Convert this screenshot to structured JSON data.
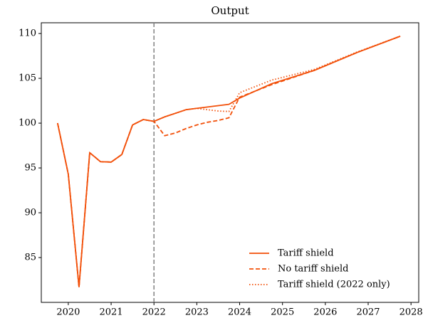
{
  "chart_data": {
    "type": "line",
    "title": "Output",
    "x": [
      2019.75,
      2020.0,
      2020.25,
      2020.5,
      2020.75,
      2021.0,
      2021.25,
      2021.5,
      2021.75,
      2022.0,
      2022.25,
      2022.5,
      2022.75,
      2023.0,
      2023.25,
      2023.5,
      2023.75,
      2024.0,
      2024.75,
      2025.75,
      2026.75,
      2027.75
    ],
    "series": [
      {
        "name": "Tariff shield",
        "color": "#f2500a",
        "dash": "solid",
        "values": [
          100,
          94.3,
          81.7,
          96.7,
          95.7,
          95.65,
          96.5,
          99.8,
          100.4,
          100.2,
          100.7,
          101.1,
          101.5,
          101.65,
          101.8,
          101.95,
          102.1,
          102.8,
          104.4,
          105.9,
          107.9,
          109.7
        ]
      },
      {
        "name": "No tariff shield",
        "color": "#f2500a",
        "dash": "dashed",
        "values": [
          100,
          94.3,
          81.7,
          96.7,
          95.7,
          95.65,
          96.5,
          99.8,
          100.4,
          100.2,
          98.6,
          98.9,
          99.4,
          99.8,
          100.1,
          100.3,
          100.6,
          102.9,
          104.3,
          105.9,
          107.9,
          109.7
        ]
      },
      {
        "name": "Tariff shield (2022 only)",
        "color": "#f2500a",
        "dash": "dotted",
        "values": [
          100,
          94.3,
          81.7,
          96.7,
          95.7,
          95.65,
          96.5,
          99.8,
          100.4,
          100.2,
          100.7,
          101.1,
          101.5,
          101.65,
          101.5,
          101.35,
          101.3,
          103.4,
          104.8,
          106.0,
          107.95,
          109.7
        ]
      }
    ],
    "xlim": [
      2019.37,
      2028.18
    ],
    "ylim": [
      80,
      111.2
    ],
    "xticks": [
      2020,
      2021,
      2022,
      2023,
      2024,
      2025,
      2026,
      2027,
      2028
    ],
    "yticks": [
      85,
      90,
      95,
      100,
      105,
      110
    ],
    "vline": {
      "x": 2022,
      "color": "#808080"
    },
    "legend": "lower right"
  }
}
